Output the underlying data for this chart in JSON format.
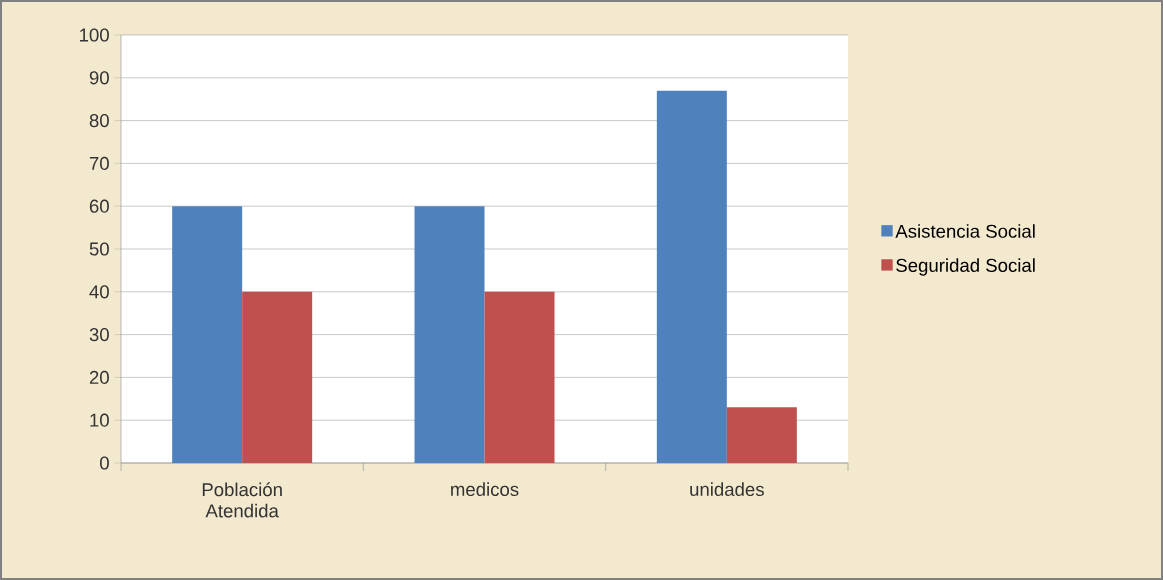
{
  "chart_data": {
    "type": "bar",
    "categories": [
      "Población Atendida",
      "medicos",
      "unidades"
    ],
    "series": [
      {
        "name": "Asistencia Social",
        "color": "#4f81bd",
        "values": [
          60,
          60,
          87
        ]
      },
      {
        "name": "Seguridad Social",
        "color": "#c0504d",
        "values": [
          40,
          40,
          13
        ]
      }
    ],
    "ylim": [
      0,
      100
    ],
    "yticks": [
      0,
      10,
      20,
      30,
      40,
      50,
      60,
      70,
      80,
      90,
      100
    ],
    "grid": "y",
    "legend": "right"
  }
}
